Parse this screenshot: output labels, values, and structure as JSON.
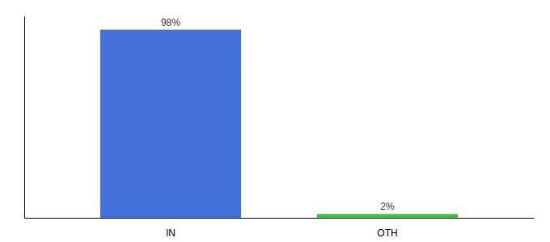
{
  "chart_data": {
    "type": "bar",
    "categories": [
      "IN",
      "OTH"
    ],
    "values": [
      98,
      2
    ],
    "colors": [
      "#4472db",
      "#33cc33"
    ],
    "value_labels": [
      "98%",
      "2%"
    ],
    "data_labels": true,
    "ylim": [
      0,
      105
    ],
    "tick_labels": "x",
    "grid": false
  }
}
